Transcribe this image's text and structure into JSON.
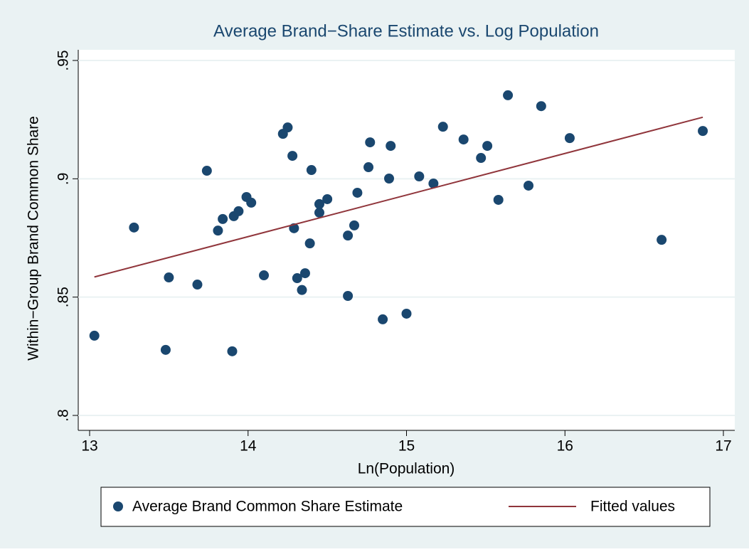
{
  "chart_data": {
    "type": "scatter",
    "title": "Average Brand−Share Estimate vs. Log Population",
    "x_label": "Ln(Population)",
    "y_label": "Within−Group Brand Common Share",
    "xlim": [
      13,
      17
    ],
    "xticks": [
      13,
      14,
      15,
      16,
      17
    ],
    "ylim": [
      0.8,
      0.95
    ],
    "yticks": [
      {
        "value": 0.8,
        "label": ".8"
      },
      {
        "value": 0.85,
        "label": ".85"
      },
      {
        "value": 0.9,
        "label": ".9"
      },
      {
        "value": 0.95,
        "label": ".95"
      }
    ],
    "grid": true,
    "series": [
      {
        "name": "Average Brand Common Share Estimate",
        "type": "scatter",
        "color": "#1a476f",
        "x": [
          13.03,
          13.28,
          13.48,
          13.5,
          13.68,
          13.74,
          13.81,
          13.84,
          13.91,
          13.94,
          13.9,
          13.99,
          14.02,
          14.1,
          14.22,
          14.25,
          14.28,
          14.29,
          14.31,
          14.34,
          14.36,
          14.39,
          14.4,
          14.45,
          14.45,
          14.5,
          14.63,
          14.63,
          14.67,
          14.69,
          14.76,
          14.77,
          14.85,
          14.89,
          14.9,
          15.0,
          15.08,
          15.17,
          15.23,
          15.36,
          15.47,
          15.51,
          15.58,
          15.64,
          15.77,
          15.85,
          16.03,
          16.61,
          16.87
        ],
        "values": [
          0.8337,
          0.8794,
          0.8277,
          0.8583,
          0.8553,
          0.9034,
          0.8781,
          0.883,
          0.8842,
          0.8863,
          0.8271,
          0.8923,
          0.8899,
          0.8592,
          0.919,
          0.9217,
          0.9097,
          0.8791,
          0.858,
          0.853,
          0.8601,
          0.8727,
          0.9037,
          0.8857,
          0.8893,
          0.8914,
          0.876,
          0.8505,
          0.8803,
          0.8941,
          0.9049,
          0.9154,
          0.8406,
          0.9001,
          0.9139,
          0.843,
          0.901,
          0.898,
          0.922,
          0.9166,
          0.9088,
          0.9139,
          0.8911,
          0.9353,
          0.8971,
          0.9307,
          0.9172,
          0.8742,
          0.9202
        ]
      },
      {
        "name": "Fitted values",
        "type": "line",
        "color": "#90353b",
        "x": [
          13.03,
          16.87
        ],
        "values": [
          0.8585,
          0.926
        ]
      }
    ]
  }
}
